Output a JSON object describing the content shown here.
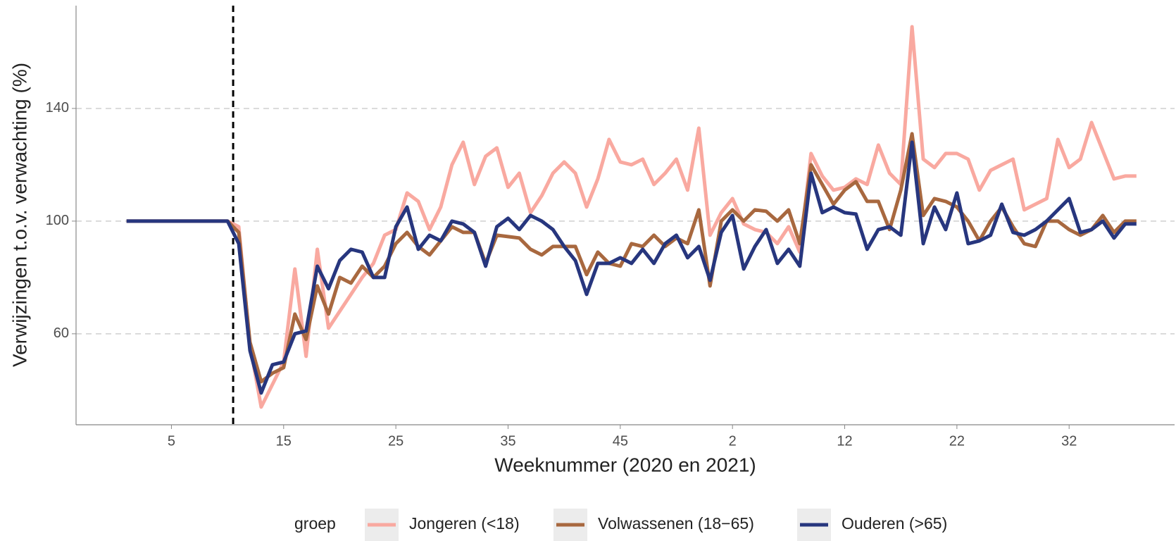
{
  "chart_data": {
    "type": "line",
    "x_label": "Weeknummer (2020 en 2021)",
    "y_label": "Verwijzingen t.o.v. verwachting (%)",
    "legend_title": "groep",
    "legend_position": "bottom",
    "grid": true,
    "vline": 10.5,
    "xlim": [
      -3.5,
      94.4
    ],
    "ylim": [
      27.7,
      176.5
    ],
    "xticks": [
      5,
      15,
      25,
      35,
      45,
      {
        "value": 55,
        "label": "2"
      },
      {
        "value": 65,
        "label": "12"
      },
      {
        "value": 75,
        "label": "22"
      },
      {
        "value": 85,
        "label": "32"
      }
    ],
    "yticks": [
      60,
      100,
      140
    ],
    "x": [
      1,
      2,
      3,
      4,
      5,
      6,
      7,
      8,
      9,
      10,
      11,
      12,
      13,
      14,
      15,
      16,
      17,
      18,
      19,
      20,
      21,
      22,
      23,
      24,
      25,
      26,
      27,
      28,
      29,
      30,
      31,
      32,
      33,
      34,
      35,
      36,
      37,
      38,
      39,
      40,
      41,
      42,
      43,
      44,
      45,
      46,
      47,
      48,
      49,
      50,
      51,
      52,
      53,
      54,
      55,
      56,
      57,
      58,
      59,
      60,
      61,
      62,
      63,
      64,
      65,
      66,
      67,
      68,
      69,
      70,
      71,
      72,
      73,
      74,
      75,
      76,
      77,
      78,
      79,
      80,
      81,
      82,
      83,
      84,
      85,
      86,
      87,
      88,
      89,
      90,
      91
    ],
    "series": [
      {
        "name": "Jongeren (<18)",
        "color": "#f9a9a0",
        "values": [
          100,
          100,
          100,
          100,
          100,
          100,
          100,
          100,
          100,
          100,
          98,
          56,
          34,
          42,
          50,
          83,
          52,
          90,
          62,
          68,
          74,
          80,
          85,
          95,
          97,
          110,
          107,
          97,
          105,
          120,
          128,
          113,
          123,
          126,
          112,
          117,
          103,
          109,
          117,
          121,
          117,
          105,
          115,
          129,
          121,
          120,
          122,
          113,
          117,
          122,
          111,
          133,
          95,
          103,
          108,
          99,
          97,
          96,
          92,
          98,
          89,
          124,
          116,
          111,
          112,
          115,
          113,
          127,
          117,
          113,
          169,
          122,
          119,
          124,
          124,
          122,
          111,
          118,
          120,
          122,
          104,
          106,
          108,
          129,
          119,
          122,
          135,
          125,
          115,
          116,
          116
        ]
      },
      {
        "name": "Volwassenen (18−65)",
        "color": "#a8683f",
        "values": [
          100,
          100,
          100,
          100,
          100,
          100,
          100,
          100,
          100,
          100,
          96,
          57,
          43,
          46,
          48,
          67,
          58,
          77,
          67,
          80,
          78,
          84,
          80,
          84,
          92,
          96,
          91,
          88,
          93,
          98,
          96,
          96,
          85,
          95,
          94.5,
          94,
          90,
          88,
          91,
          91,
          91,
          81,
          89,
          85,
          84,
          92,
          91,
          95,
          91,
          94,
          92,
          104,
          77,
          100,
          104,
          100,
          104,
          103.5,
          100,
          104,
          92,
          120,
          113,
          106,
          111,
          114,
          107,
          107,
          97,
          111,
          131,
          102,
          108,
          107,
          105,
          100,
          93,
          100,
          105,
          98,
          92,
          91,
          100,
          100,
          97,
          95,
          97,
          102,
          96,
          100,
          100
        ]
      },
      {
        "name": "Ouderen (>65)",
        "color": "#27367e",
        "values": [
          100,
          100,
          100,
          100,
          100,
          100,
          100,
          100,
          100,
          100,
          92,
          54,
          39,
          49,
          50,
          60,
          61,
          84,
          76,
          86,
          90,
          89,
          80,
          80,
          98,
          105,
          90,
          95,
          93,
          100,
          99,
          96,
          84,
          98,
          101,
          97,
          102,
          100,
          97,
          91,
          86,
          74,
          85,
          85,
          87,
          85,
          90,
          85,
          92,
          95,
          87,
          91,
          79,
          96,
          102,
          83,
          91,
          97,
          85,
          90,
          84,
          117,
          103,
          105,
          103,
          102.5,
          90,
          97,
          98,
          95,
          128,
          92,
          105,
          97,
          110,
          92,
          93,
          95,
          106,
          96,
          95,
          97,
          100,
          104,
          108,
          96,
          97,
          100,
          94,
          99,
          99
        ]
      }
    ]
  }
}
